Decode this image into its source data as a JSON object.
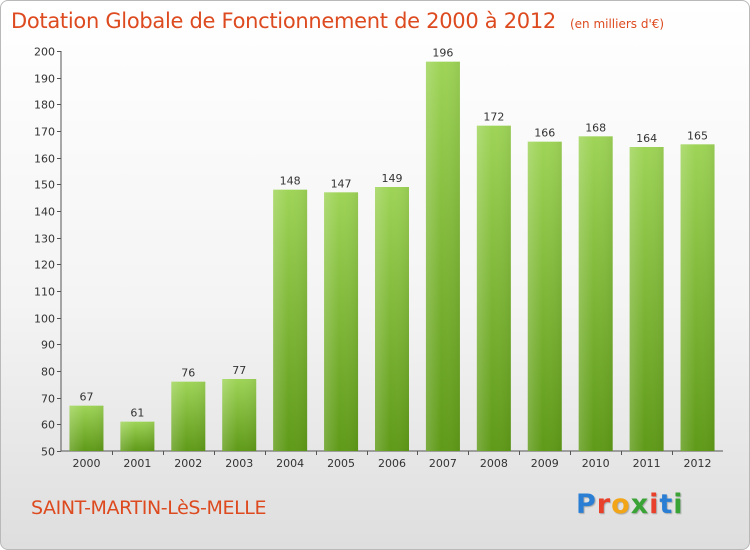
{
  "title": "Dotation Globale de Fonctionnement de 2000 à 2012",
  "subtitle": "(en milliers d'€)",
  "commune": "SAINT-MARTIN-LèS-MELLE",
  "brand": {
    "letters": [
      "P",
      "r",
      "o",
      "x",
      "i",
      "t",
      "i"
    ],
    "colors": [
      "#2a7fd4",
      "#e8402a",
      "#f2a516",
      "#3aa335",
      "#e8402a",
      "#2a7fd4",
      "#3aa335"
    ]
  },
  "colors": {
    "accent": "#dd4a1f",
    "bar_light": "#9ed457",
    "bar_dark": "#5f9a18"
  },
  "chart_data": {
    "type": "bar",
    "title": "Dotation Globale de Fonctionnement de 2000 à 2012",
    "subtitle": "(en milliers d'€)",
    "categories": [
      "2000",
      "2001",
      "2002",
      "2003",
      "2004",
      "2005",
      "2006",
      "2007",
      "2008",
      "2009",
      "2010",
      "2011",
      "2012"
    ],
    "values": [
      67,
      61,
      76,
      77,
      148,
      147,
      149,
      196,
      172,
      166,
      168,
      164,
      165
    ],
    "ylim": [
      50,
      200
    ],
    "yticks": [
      50,
      60,
      70,
      80,
      90,
      100,
      110,
      120,
      130,
      140,
      150,
      160,
      170,
      180,
      190,
      200
    ],
    "grid": false,
    "legend": "none",
    "data_labels": true
  }
}
